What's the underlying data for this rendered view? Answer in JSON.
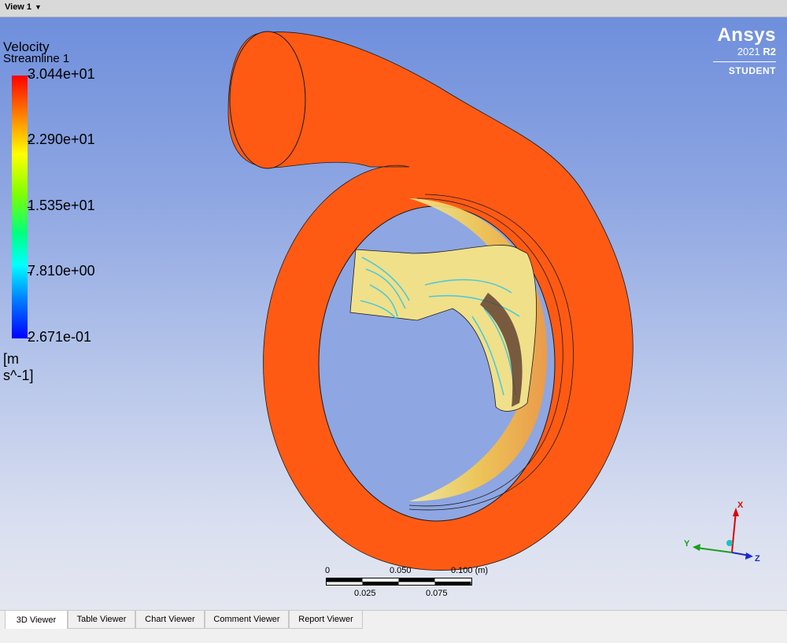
{
  "viewbar": {
    "view_label": "View 1",
    "dropdown_icon": "caret-down-icon"
  },
  "legend": {
    "title": "Velocity",
    "subtitle": "Streamline 1",
    "ticks": [
      "3.044e+01",
      "2.290e+01",
      "1.535e+01",
      "7.810e+00",
      "2.671e-01"
    ],
    "units": "[m s^-1]",
    "colors": {
      "max": "#ff0000",
      "min": "#0000ff"
    }
  },
  "branding": {
    "logo": "Ansys",
    "version_year": "2021",
    "version_release": "R2",
    "edition": "STUDENT"
  },
  "scale_bar": {
    "top_labels": [
      "0",
      "0.050",
      "0.100 (m)"
    ],
    "bottom_labels": [
      "0.025",
      "0.075"
    ]
  },
  "triad": {
    "x": "X",
    "y": "Y",
    "z": "Z"
  },
  "tabs": [
    {
      "label": "3D Viewer",
      "active": true
    },
    {
      "label": "Table Viewer",
      "active": false
    },
    {
      "label": "Chart Viewer",
      "active": false
    },
    {
      "label": "Comment Viewer",
      "active": false
    },
    {
      "label": "Report Viewer",
      "active": false
    }
  ],
  "model_colors": {
    "volute": "#ff5a14",
    "inner": "#f2d97a"
  }
}
